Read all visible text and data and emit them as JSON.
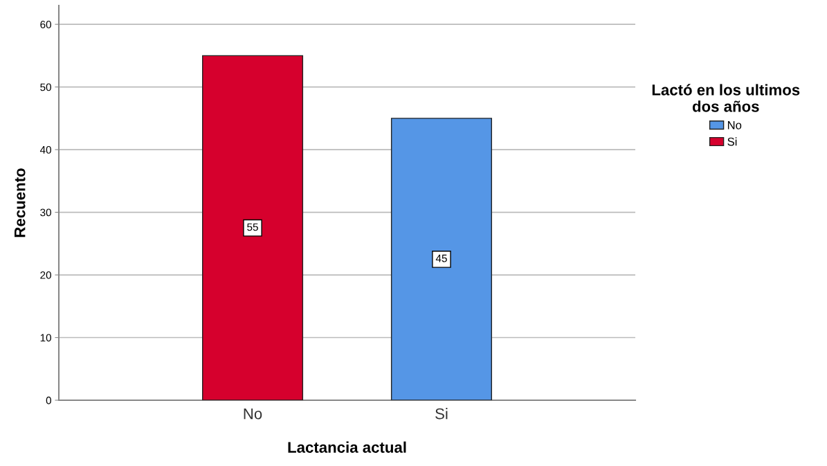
{
  "chart_data": {
    "type": "bar",
    "xlabel": "Lactancia actual",
    "ylabel": "Recuento",
    "legend_title": "Lactó en los ultimos\ndos años",
    "categories": [
      "No",
      "Si"
    ],
    "series": [
      {
        "name": "No",
        "color": "#5596e6",
        "values": [
          null,
          45
        ]
      },
      {
        "name": "Si",
        "color": "#d6002d",
        "values": [
          55,
          null
        ]
      }
    ],
    "ylim": [
      0,
      63
    ],
    "yticks": [
      0,
      10,
      20,
      30,
      40,
      50,
      60
    ],
    "grid": "y",
    "data_labels": true,
    "legend": "right"
  }
}
